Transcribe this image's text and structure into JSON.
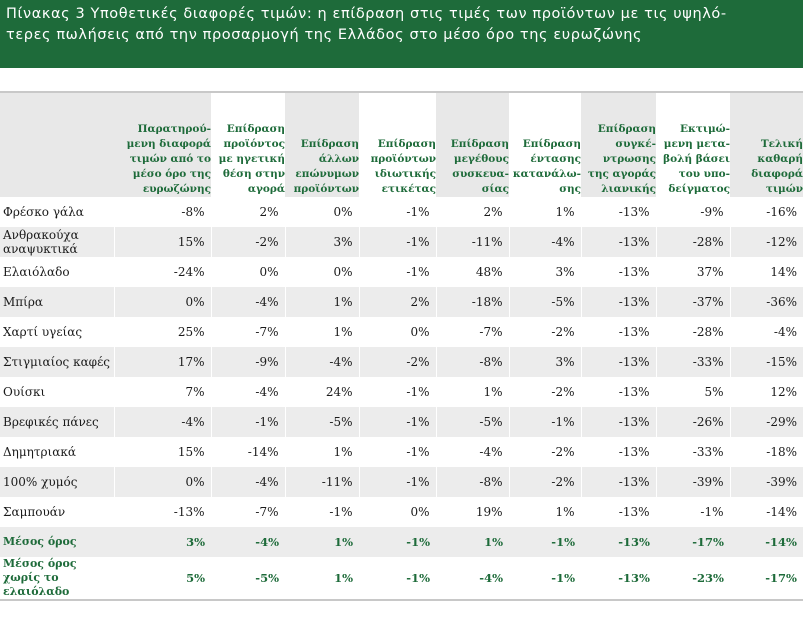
{
  "title": "Πίνακας 3 Υποθετικές διαφορές τιμών: η επίδραση στις τιμές των προϊόντων με τις υψηλό-\nτερες πωλήσεις από την προσαρμογή της Ελλάδος στο μέσο όρο της ευρωζώνης",
  "colors": {
    "accent": "#1e6b3a",
    "row_shade": "#ececec"
  },
  "columns": [
    "Παρατηρού-\nμενη διαφορά\nτιμών από το\nμέσο όρο της\nευρωζώνης",
    "Επίδραση\nπροϊόντος\nμε ηγετική\nθέση στην\nαγορά",
    "Επίδραση\nάλλων\nεπώνυμων\nπροϊόντων",
    "Επίδραση\nπροϊόντων\nιδιωτικής\nετικέτας",
    "Επίδραση\nμεγέθους\nσυσκευα-\nσίας",
    "Επίδραση\nέντασης\nκατανάλω-\nσης",
    "Επίδραση\nσυγκέ-\nντρωσης\nτης αγοράς\nλιανικής",
    "Εκτιμώ-\nμενη μετα-\nβολή βάσει\nτου υπο-\nδείγματος",
    "Τελική\nκαθαρή\nδιαφορά\nτιμών"
  ],
  "rows": [
    {
      "label": "Φρέσκο γάλα",
      "values": [
        "-8%",
        "2%",
        "0%",
        "-1%",
        "2%",
        "1%",
        "-13%",
        "-9%",
        "-16%"
      ]
    },
    {
      "label": "Ανθρακούχα αναψυκτικά",
      "values": [
        "15%",
        "-2%",
        "3%",
        "-1%",
        "-11%",
        "-4%",
        "-13%",
        "-28%",
        "-12%"
      ]
    },
    {
      "label": "Ελαιόλαδο",
      "values": [
        "-24%",
        "0%",
        "0%",
        "-1%",
        "48%",
        "3%",
        "-13%",
        "37%",
        "14%"
      ]
    },
    {
      "label": "Μπίρα",
      "values": [
        "0%",
        "-4%",
        "1%",
        "2%",
        "-18%",
        "-5%",
        "-13%",
        "-37%",
        "-36%"
      ]
    },
    {
      "label": "Χαρτί υγείας",
      "values": [
        "25%",
        "-7%",
        "1%",
        "0%",
        "-7%",
        "-2%",
        "-13%",
        "-28%",
        "-4%"
      ]
    },
    {
      "label": "Στιγμιαίος καφές",
      "values": [
        "17%",
        "-9%",
        "-4%",
        "-2%",
        "-8%",
        "3%",
        "-13%",
        "-33%",
        "-15%"
      ]
    },
    {
      "label": "Ουίσκι",
      "values": [
        "7%",
        "-4%",
        "24%",
        "-1%",
        "1%",
        "-2%",
        "-13%",
        "5%",
        "12%"
      ]
    },
    {
      "label": "Βρεφικές πάνες",
      "values": [
        "-4%",
        "-1%",
        "-5%",
        "-1%",
        "-5%",
        "-1%",
        "-13%",
        "-26%",
        "-29%"
      ]
    },
    {
      "label": "Δημητριακά",
      "values": [
        "15%",
        "-14%",
        "1%",
        "-1%",
        "-4%",
        "-2%",
        "-13%",
        "-33%",
        "-18%"
      ]
    },
    {
      "label": "100% χυμός",
      "values": [
        "0%",
        "-4%",
        "-11%",
        "-1%",
        "-8%",
        "-2%",
        "-13%",
        "-39%",
        "-39%"
      ]
    },
    {
      "label": "Σαμπουάν",
      "values": [
        "-13%",
        "-7%",
        "-1%",
        "0%",
        "19%",
        "1%",
        "-13%",
        "-1%",
        "-14%"
      ]
    }
  ],
  "average": {
    "label": "Μέσος όρος",
    "values": [
      "3%",
      "-4%",
      "1%",
      "-1%",
      "1%",
      "-1%",
      "-13%",
      "-17%",
      "-14%"
    ]
  },
  "average_ex_oil": {
    "label": "Μέσος όρος χωρίς το ελαιόλαδο",
    "values": [
      "5%",
      "-5%",
      "1%",
      "-1%",
      "-4%",
      "-1%",
      "-13%",
      "-23%",
      "-17%"
    ]
  }
}
